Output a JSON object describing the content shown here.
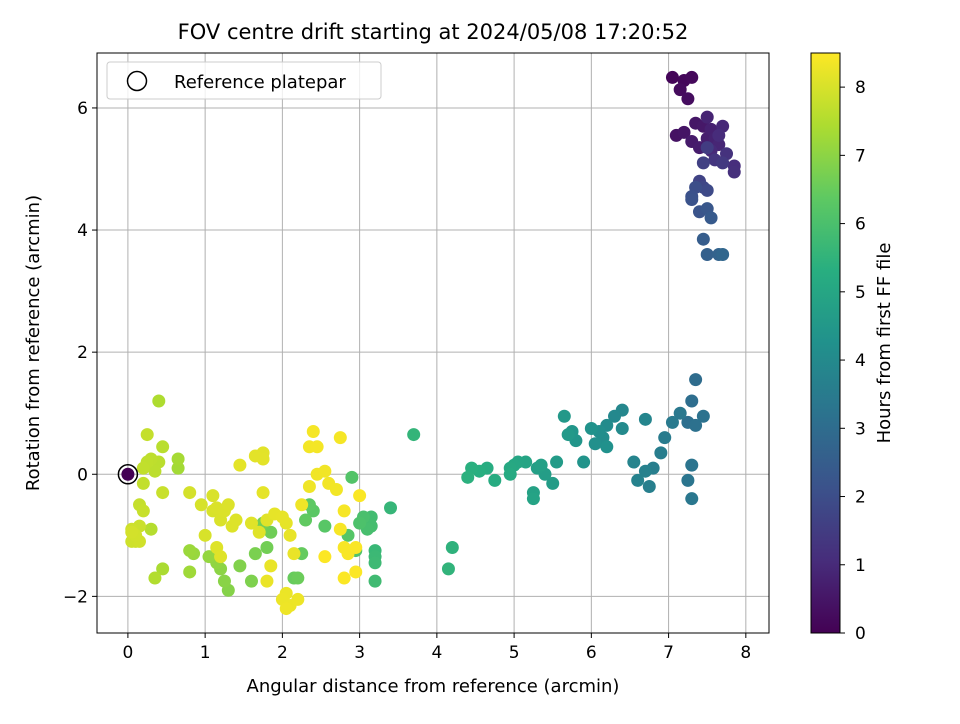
{
  "chart_data": {
    "type": "scatter",
    "title": "FOV centre drift starting at 2024/05/08 17:20:52",
    "xlabel": "Angular distance from reference (arcmin)",
    "ylabel": "Rotation from reference (arcmin)",
    "xlim": [
      -0.4,
      8.3
    ],
    "ylim": [
      -2.6,
      6.9
    ],
    "xticks": [
      0,
      1,
      2,
      3,
      4,
      5,
      6,
      7,
      8
    ],
    "yticks": [
      -2,
      0,
      2,
      4,
      6
    ],
    "xtick_labels": [
      "0",
      "1",
      "2",
      "3",
      "4",
      "5",
      "6",
      "7",
      "8"
    ],
    "ytick_labels": [
      "−2",
      "0",
      "2",
      "4",
      "6"
    ],
    "grid": true,
    "legend": {
      "location": "upper-left",
      "entries": [
        {
          "label": "Reference platepar",
          "marker": "hollow-circle"
        }
      ]
    },
    "colorbar": {
      "label": "Hours from first FF file",
      "colormap": "viridis",
      "range": [
        0,
        8.5
      ],
      "ticks": [
        0,
        1,
        2,
        3,
        4,
        5,
        6,
        7,
        8
      ],
      "tick_labels": [
        "0",
        "1",
        "2",
        "3",
        "4",
        "5",
        "6",
        "7",
        "8"
      ]
    },
    "reference_point": {
      "x": 0,
      "y": 0
    },
    "series": [
      {
        "points": [
          [
            7.05,
            6.5,
            0.1
          ],
          [
            7.2,
            6.45,
            0.15
          ],
          [
            7.3,
            6.5,
            0.2
          ],
          [
            7.15,
            6.3,
            0.25
          ],
          [
            7.25,
            6.15,
            0.3
          ],
          [
            7.1,
            5.55,
            0.4
          ],
          [
            7.2,
            5.6,
            0.45
          ],
          [
            7.35,
            5.75,
            0.5
          ],
          [
            7.45,
            5.7,
            0.55
          ],
          [
            7.3,
            5.45,
            0.6
          ],
          [
            7.4,
            5.35,
            0.65
          ],
          [
            7.5,
            5.5,
            0.7
          ],
          [
            7.55,
            5.65,
            0.75
          ],
          [
            7.6,
            5.5,
            0.8
          ],
          [
            7.5,
            5.85,
            0.85
          ],
          [
            7.65,
            5.4,
            0.9
          ],
          [
            7.7,
            5.7,
            0.95
          ],
          [
            7.55,
            5.3,
            1.0
          ],
          [
            7.65,
            5.55,
            1.05
          ],
          [
            7.85,
            5.05,
            1.1
          ],
          [
            7.85,
            4.95,
            1.15
          ],
          [
            7.75,
            5.25,
            1.2
          ],
          [
            7.6,
            5.15,
            1.3
          ],
          [
            7.7,
            5.1,
            1.4
          ],
          [
            7.5,
            5.35,
            1.5
          ],
          [
            7.45,
            5.1,
            1.6
          ],
          [
            7.4,
            4.8,
            1.7
          ],
          [
            7.45,
            4.7,
            1.8
          ],
          [
            7.5,
            4.65,
            1.9
          ],
          [
            7.35,
            4.7,
            2.0
          ],
          [
            7.3,
            4.55,
            2.1
          ],
          [
            7.3,
            4.5,
            2.15
          ],
          [
            7.4,
            4.3,
            2.2
          ],
          [
            7.5,
            4.35,
            2.3
          ],
          [
            7.55,
            4.2,
            2.4
          ],
          [
            7.45,
            3.85,
            2.5
          ],
          [
            7.5,
            3.6,
            2.6
          ],
          [
            7.65,
            3.6,
            2.7
          ],
          [
            7.7,
            3.6,
            2.8
          ],
          [
            7.35,
            1.55,
            3.0
          ],
          [
            7.3,
            1.2,
            3.05
          ],
          [
            7.25,
            0.85,
            3.1
          ],
          [
            7.35,
            0.8,
            3.15
          ],
          [
            7.45,
            0.95,
            3.2
          ],
          [
            7.3,
            0.15,
            3.25
          ],
          [
            7.25,
            -0.1,
            3.3
          ],
          [
            7.3,
            -0.4,
            3.35
          ],
          [
            7.15,
            1.0,
            3.4
          ],
          [
            7.05,
            0.85,
            3.45
          ],
          [
            6.95,
            0.6,
            3.5
          ],
          [
            6.9,
            0.35,
            3.55
          ],
          [
            6.8,
            0.1,
            3.6
          ],
          [
            6.75,
            -0.2,
            3.65
          ],
          [
            6.7,
            0.05,
            3.7
          ],
          [
            6.6,
            -0.1,
            3.75
          ],
          [
            6.55,
            0.2,
            3.8
          ],
          [
            6.7,
            0.9,
            3.85
          ],
          [
            6.4,
            1.05,
            3.9
          ],
          [
            6.3,
            0.95,
            3.95
          ],
          [
            6.4,
            0.75,
            4.0
          ],
          [
            6.2,
            0.8,
            4.05
          ],
          [
            6.15,
            0.6,
            4.1
          ],
          [
            6.1,
            0.7,
            4.15
          ],
          [
            6.05,
            0.5,
            4.2
          ],
          [
            6.2,
            0.45,
            4.25
          ],
          [
            6.0,
            0.75,
            4.3
          ],
          [
            5.9,
            0.2,
            4.35
          ],
          [
            5.8,
            0.55,
            4.4
          ],
          [
            5.75,
            0.7,
            4.45
          ],
          [
            5.65,
            0.95,
            4.5
          ],
          [
            5.7,
            0.65,
            4.55
          ],
          [
            5.55,
            0.2,
            4.6
          ],
          [
            5.5,
            -0.15,
            4.65
          ],
          [
            5.4,
            0.0,
            4.7
          ],
          [
            5.3,
            0.1,
            4.75
          ],
          [
            5.35,
            0.15,
            4.8
          ],
          [
            5.25,
            -0.3,
            4.85
          ],
          [
            5.25,
            -0.4,
            4.9
          ],
          [
            5.15,
            0.2,
            4.95
          ],
          [
            5.05,
            0.2,
            5.0
          ],
          [
            5.0,
            0.15,
            5.05
          ],
          [
            4.95,
            0.1,
            5.1
          ],
          [
            4.95,
            0.0,
            5.15
          ],
          [
            4.75,
            -0.1,
            5.2
          ],
          [
            4.65,
            0.1,
            5.25
          ],
          [
            4.55,
            0.05,
            5.3
          ],
          [
            4.45,
            0.1,
            5.35
          ],
          [
            4.4,
            -0.05,
            5.4
          ],
          [
            4.2,
            -1.2,
            5.45
          ],
          [
            4.15,
            -1.55,
            5.5
          ],
          [
            3.7,
            0.65,
            5.55
          ],
          [
            3.4,
            -0.55,
            5.6
          ],
          [
            3.2,
            -1.25,
            5.65
          ],
          [
            3.2,
            -1.35,
            5.7
          ],
          [
            3.2,
            -1.45,
            5.75
          ],
          [
            3.2,
            -1.75,
            5.8
          ],
          [
            3.15,
            -0.7,
            5.85
          ],
          [
            3.15,
            -0.85,
            5.9
          ],
          [
            3.1,
            -0.9,
            5.95
          ],
          [
            3.05,
            -0.7,
            6.0
          ],
          [
            3.0,
            -0.8,
            6.05
          ],
          [
            2.95,
            -1.25,
            6.1
          ],
          [
            2.9,
            -0.05,
            6.15
          ],
          [
            2.85,
            -1.0,
            6.2
          ],
          [
            2.55,
            -0.85,
            6.25
          ],
          [
            2.4,
            -0.6,
            6.3
          ],
          [
            2.35,
            -0.5,
            6.35
          ],
          [
            2.3,
            -0.75,
            6.4
          ],
          [
            2.25,
            -1.3,
            6.45
          ],
          [
            2.15,
            -1.7,
            6.5
          ],
          [
            2.2,
            -1.7,
            6.55
          ],
          [
            1.85,
            -0.95,
            6.6
          ],
          [
            1.8,
            -1.2,
            6.65
          ],
          [
            1.75,
            -0.8,
            6.7
          ],
          [
            1.65,
            -1.3,
            6.75
          ],
          [
            1.6,
            -1.75,
            6.8
          ],
          [
            1.45,
            -1.5,
            6.85
          ],
          [
            1.3,
            -1.9,
            6.9
          ],
          [
            1.25,
            -1.75,
            6.95
          ],
          [
            1.2,
            -1.55,
            7.0
          ],
          [
            1.15,
            -1.45,
            7.05
          ],
          [
            1.05,
            -1.35,
            7.1
          ],
          [
            0.85,
            -1.3,
            7.15
          ],
          [
            0.8,
            -1.25,
            7.2
          ],
          [
            0.8,
            -1.6,
            7.25
          ],
          [
            0.65,
            0.1,
            7.3
          ],
          [
            0.65,
            0.25,
            7.35
          ],
          [
            0.45,
            -1.55,
            7.4
          ],
          [
            0.4,
            1.2,
            7.45
          ],
          [
            0.35,
            -1.7,
            7.5
          ],
          [
            0.3,
            -0.9,
            7.55
          ],
          [
            0.45,
            0.45,
            7.6
          ],
          [
            0.4,
            0.2,
            7.62
          ],
          [
            0.35,
            0.05,
            7.64
          ],
          [
            0.3,
            0.25,
            7.66
          ],
          [
            0.25,
            0.2,
            7.68
          ],
          [
            0.2,
            0.1,
            7.7
          ],
          [
            0.2,
            -0.15,
            7.72
          ],
          [
            0.25,
            0.65,
            7.74
          ],
          [
            0.15,
            -0.5,
            7.76
          ],
          [
            0.2,
            -0.6,
            7.78
          ],
          [
            0.45,
            -0.3,
            7.8
          ],
          [
            0.15,
            -0.85,
            7.82
          ],
          [
            0.1,
            -1.1,
            7.84
          ],
          [
            0.05,
            -0.9,
            7.86
          ],
          [
            0.05,
            -1.1,
            7.88
          ],
          [
            0.15,
            -1.1,
            7.9
          ],
          [
            0.1,
            -1.0,
            7.92
          ],
          [
            0.05,
            -0.95,
            7.94
          ],
          [
            0.8,
            -0.3,
            7.96
          ],
          [
            0.95,
            -0.5,
            7.98
          ],
          [
            1.0,
            -1.0,
            8.0
          ],
          [
            1.1,
            -0.6,
            8.01
          ],
          [
            1.1,
            -0.35,
            8.02
          ],
          [
            1.15,
            -0.55,
            8.03
          ],
          [
            1.2,
            -0.75,
            8.04
          ],
          [
            1.25,
            -0.6,
            8.05
          ],
          [
            1.3,
            -0.5,
            8.06
          ],
          [
            1.35,
            -0.85,
            8.07
          ],
          [
            1.4,
            -0.75,
            8.08
          ],
          [
            1.15,
            -1.2,
            8.09
          ],
          [
            1.2,
            -1.35,
            8.1
          ],
          [
            1.6,
            -0.8,
            8.11
          ],
          [
            1.7,
            -0.95,
            8.12
          ],
          [
            1.8,
            -0.75,
            8.13
          ],
          [
            1.75,
            0.35,
            8.14
          ],
          [
            1.75,
            0.25,
            8.15
          ],
          [
            1.65,
            0.3,
            8.16
          ],
          [
            1.45,
            0.15,
            8.17
          ],
          [
            1.75,
            -0.3,
            8.18
          ],
          [
            1.9,
            -0.65,
            8.19
          ],
          [
            2.05,
            -0.8,
            8.2
          ],
          [
            2.0,
            -0.7,
            8.21
          ],
          [
            2.1,
            -1.0,
            8.22
          ],
          [
            2.15,
            -1.3,
            8.23
          ],
          [
            1.85,
            -1.5,
            8.24
          ],
          [
            1.8,
            -1.75,
            8.25
          ],
          [
            2.05,
            -1.95,
            8.26
          ],
          [
            2.0,
            -2.05,
            8.27
          ],
          [
            2.1,
            -2.15,
            8.28
          ],
          [
            2.2,
            -2.05,
            8.29
          ],
          [
            2.05,
            -2.2,
            8.3
          ],
          [
            2.25,
            -0.5,
            8.31
          ],
          [
            2.35,
            -0.2,
            8.32
          ],
          [
            2.45,
            0.0,
            8.33
          ],
          [
            2.55,
            0.05,
            8.34
          ],
          [
            2.6,
            -0.15,
            8.35
          ],
          [
            2.7,
            -0.25,
            8.36
          ],
          [
            2.35,
            0.45,
            8.37
          ],
          [
            2.45,
            0.45,
            8.38
          ],
          [
            2.4,
            0.7,
            8.39
          ],
          [
            2.75,
            0.6,
            8.4
          ],
          [
            2.8,
            -0.6,
            8.41
          ],
          [
            2.75,
            -0.9,
            8.42
          ],
          [
            2.8,
            -1.2,
            8.43
          ],
          [
            2.85,
            -1.3,
            8.44
          ],
          [
            2.95,
            -1.2,
            8.45
          ],
          [
            3.0,
            -0.35,
            8.46
          ],
          [
            2.95,
            -1.6,
            8.47
          ],
          [
            2.8,
            -1.7,
            8.48
          ],
          [
            2.55,
            -1.35,
            8.49
          ]
        ]
      }
    ]
  }
}
